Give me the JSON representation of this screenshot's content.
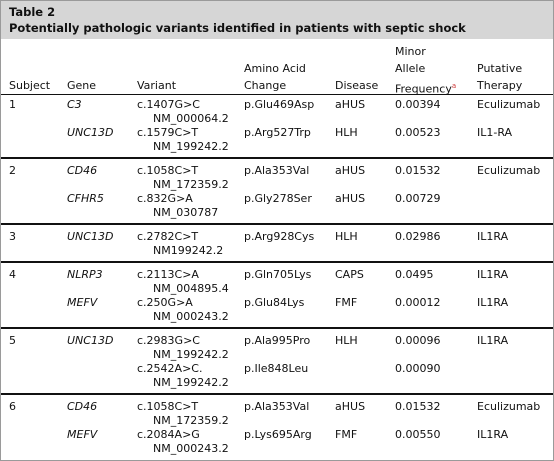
{
  "header": {
    "label": "Table 2",
    "title": "Potentially pathologic variants identified in patients with septic shock"
  },
  "table": {
    "columns": [
      [
        "Subject"
      ],
      [
        "Gene"
      ],
      [
        "Variant"
      ],
      [
        "Amino Acid",
        "Change"
      ],
      [
        "Disease"
      ],
      [
        "Minor",
        "Allele",
        "Frequency"
      ],
      [
        "Putative",
        "Therapy"
      ]
    ],
    "frequency_footnote": "a",
    "groups": [
      {
        "subject": "1",
        "rows": [
          {
            "gene": "C3",
            "variant": [
              "c.1407G>C",
              "NM_000064.2"
            ],
            "change": "p.Glu469Asp",
            "disease": "aHUS",
            "frequency": "0.00394",
            "therapy": "Eculizumab"
          },
          {
            "gene": "UNC13D",
            "variant": [
              "c.1579C>T",
              "NM_199242.2"
            ],
            "change": "p.Arg527Trp",
            "disease": "HLH",
            "frequency": "0.00523",
            "therapy": "IL1-RA"
          }
        ]
      },
      {
        "subject": "2",
        "rows": [
          {
            "gene": "CD46",
            "variant": [
              "c.1058C>T",
              "NM_172359.2"
            ],
            "change": "p.Ala353Val",
            "disease": "aHUS",
            "frequency": "0.01532",
            "therapy": "Eculizumab"
          },
          {
            "gene": "CFHR5",
            "variant": [
              "c.832G>A",
              "NM_030787"
            ],
            "change": "p.Gly278Ser",
            "disease": "aHUS",
            "frequency": "0.00729",
            "therapy": null
          }
        ]
      },
      {
        "subject": "3",
        "rows": [
          {
            "gene": "UNC13D",
            "variant": [
              "c.2782C>T",
              "NM199242.2"
            ],
            "change": "p.Arg928Cys",
            "disease": "HLH",
            "frequency": "0.02986",
            "therapy": "IL1RA"
          }
        ]
      },
      {
        "subject": "4",
        "rows": [
          {
            "gene": "NLRP3",
            "variant": [
              "c.2113C>A",
              "NM_004895.4"
            ],
            "change": "p.Gln705Lys",
            "disease": "CAPS",
            "frequency": "0.0495",
            "therapy": "IL1RA"
          },
          {
            "gene": "MEFV",
            "variant": [
              "c.250G>A",
              "NM_000243.2"
            ],
            "change": "p.Glu84Lys",
            "disease": "FMF",
            "frequency": "0.00012",
            "therapy": "IL1RA"
          }
        ]
      },
      {
        "subject": "5",
        "rows": [
          {
            "gene": "UNC13D",
            "variant": [
              "c.2983G>C",
              "NM_199242.2"
            ],
            "change": "p.Ala995Pro",
            "disease": "HLH",
            "frequency": "0.00096",
            "therapy": "IL1RA"
          },
          {
            "gene": null,
            "variant": [
              "c.2542A>C.",
              "NM_199242.2"
            ],
            "change": "p.Ile848Leu",
            "disease": null,
            "frequency": "0.00090",
            "therapy": null
          }
        ]
      },
      {
        "subject": "6",
        "rows": [
          {
            "gene": "CD46",
            "variant": [
              "c.1058C>T",
              "NM_172359.2"
            ],
            "change": "p.Ala353Val",
            "disease": "aHUS",
            "frequency": "0.01532",
            "therapy": "Eculizumab"
          },
          {
            "gene": "MEFV",
            "variant": [
              "c.2084A>G",
              "NM_000243.2"
            ],
            "change": "p.Lys695Arg",
            "disease": "FMF",
            "frequency": "0.00550",
            "therapy": "IL1RA"
          }
        ]
      }
    ]
  }
}
